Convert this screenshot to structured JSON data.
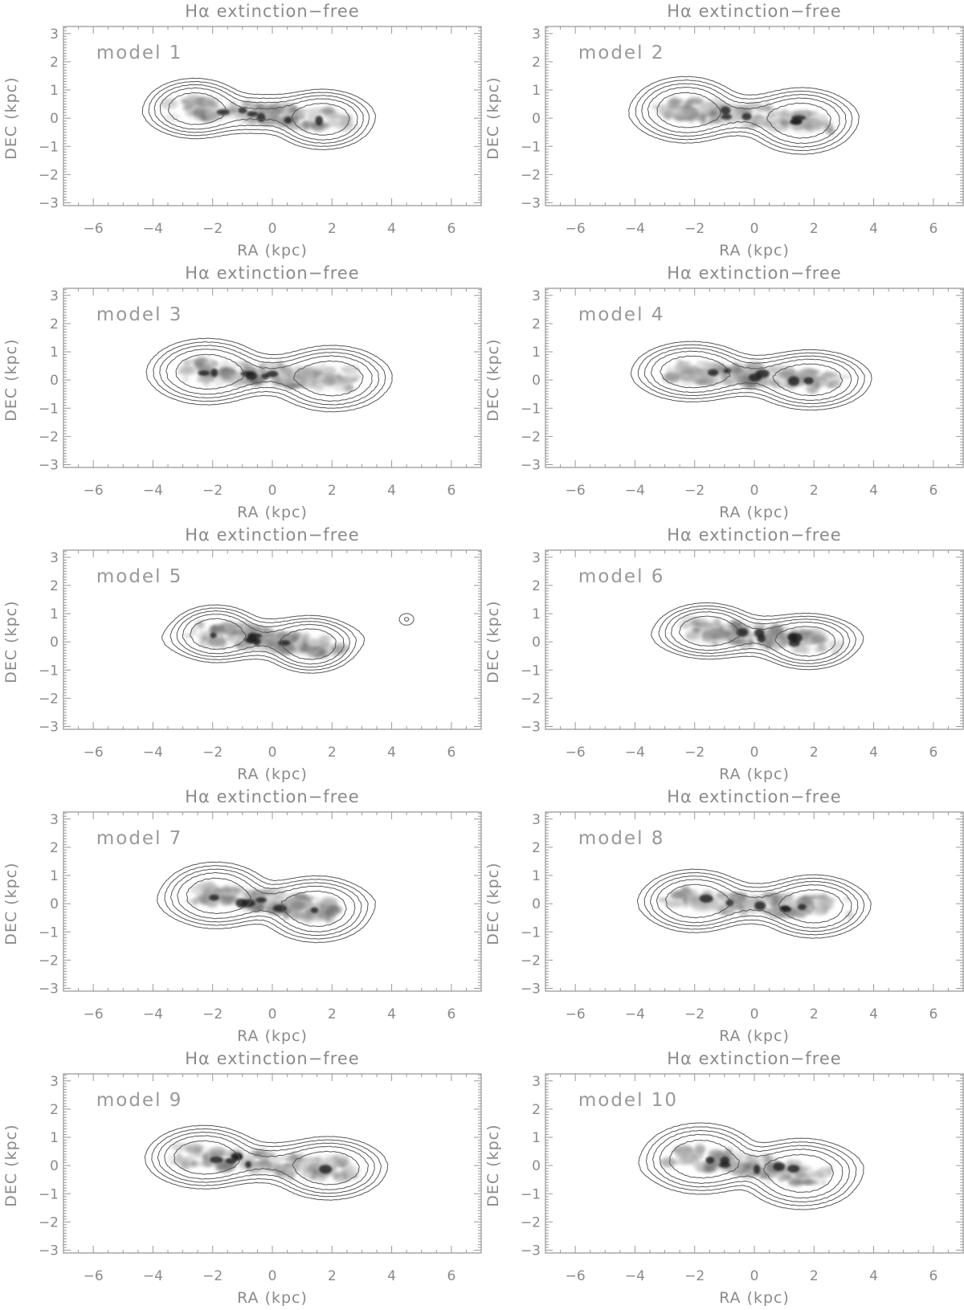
{
  "chart_data": [
    {
      "type": "image",
      "title": "Hα extinction−free",
      "label": "model 1",
      "xlabel": "RA (kpc)",
      "ylabel": "DEC (kpc)",
      "xlim": [
        -7,
        7
      ],
      "ylim": [
        -3.1,
        3.25
      ],
      "xticks": [
        -6,
        -4,
        -2,
        0,
        2,
        4,
        6
      ],
      "yticks": [
        -3,
        -2,
        -1,
        0,
        1,
        2,
        3
      ],
      "colormap": "inverted grayscale",
      "contour_color": "#555555"
    },
    {
      "type": "image",
      "title": "Hα extinction−free",
      "label": "model 2",
      "xlabel": "RA (kpc)",
      "ylabel": "DEC (kpc)",
      "xlim": [
        -7,
        7
      ],
      "ylim": [
        -3.1,
        3.25
      ],
      "xticks": [
        -6,
        -4,
        -2,
        0,
        2,
        4,
        6
      ],
      "yticks": [
        -3,
        -2,
        -1,
        0,
        1,
        2,
        3
      ],
      "colormap": "inverted grayscale",
      "contour_color": "#555555"
    },
    {
      "type": "image",
      "title": "Hα extinction−free",
      "label": "model 3",
      "xlabel": "RA (kpc)",
      "ylabel": "DEC (kpc)",
      "xlim": [
        -7,
        7
      ],
      "ylim": [
        -3.1,
        3.25
      ],
      "xticks": [
        -6,
        -4,
        -2,
        0,
        2,
        4,
        6
      ],
      "yticks": [
        -3,
        -2,
        -1,
        0,
        1,
        2,
        3
      ],
      "colormap": "inverted grayscale",
      "contour_color": "#555555"
    },
    {
      "type": "image",
      "title": "Hα extinction−free",
      "label": "model 4",
      "xlabel": "RA (kpc)",
      "ylabel": "DEC (kpc)",
      "xlim": [
        -7,
        7
      ],
      "ylim": [
        -3.1,
        3.25
      ],
      "xticks": [
        -6,
        -4,
        -2,
        0,
        2,
        4,
        6
      ],
      "yticks": [
        -3,
        -2,
        -1,
        0,
        1,
        2,
        3
      ],
      "colormap": "inverted grayscale",
      "contour_color": "#555555"
    },
    {
      "type": "image",
      "title": "Hα extinction−free",
      "label": "model 5",
      "xlabel": "RA (kpc)",
      "ylabel": "DEC (kpc)",
      "xlim": [
        -7,
        7
      ],
      "ylim": [
        -3.1,
        3.25
      ],
      "xticks": [
        -6,
        -4,
        -2,
        0,
        2,
        4,
        6
      ],
      "yticks": [
        -3,
        -2,
        -1,
        0,
        1,
        2,
        3
      ],
      "colormap": "inverted grayscale",
      "contour_color": "#555555"
    },
    {
      "type": "image",
      "title": "Hα extinction−free",
      "label": "model 6",
      "xlabel": "RA (kpc)",
      "ylabel": "DEC (kpc)",
      "xlim": [
        -7,
        7
      ],
      "ylim": [
        -3.1,
        3.25
      ],
      "xticks": [
        -6,
        -4,
        -2,
        0,
        2,
        4,
        6
      ],
      "yticks": [
        -3,
        -2,
        -1,
        0,
        1,
        2,
        3
      ],
      "colormap": "inverted grayscale",
      "contour_color": "#555555"
    },
    {
      "type": "image",
      "title": "Hα extinction−free",
      "label": "model 7",
      "xlabel": "RA (kpc)",
      "ylabel": "DEC (kpc)",
      "xlim": [
        -7,
        7
      ],
      "ylim": [
        -3.1,
        3.25
      ],
      "xticks": [
        -6,
        -4,
        -2,
        0,
        2,
        4,
        6
      ],
      "yticks": [
        -3,
        -2,
        -1,
        0,
        1,
        2,
        3
      ],
      "colormap": "inverted grayscale",
      "contour_color": "#555555"
    },
    {
      "type": "image",
      "title": "Hα extinction−free",
      "label": "model 8",
      "xlabel": "RA (kpc)",
      "ylabel": "DEC (kpc)",
      "xlim": [
        -7,
        7
      ],
      "ylim": [
        -3.1,
        3.25
      ],
      "xticks": [
        -6,
        -4,
        -2,
        0,
        2,
        4,
        6
      ],
      "yticks": [
        -3,
        -2,
        -1,
        0,
        1,
        2,
        3
      ],
      "colormap": "inverted grayscale",
      "contour_color": "#555555"
    },
    {
      "type": "image",
      "title": "Hα extinction−free",
      "label": "model 9",
      "xlabel": "RA (kpc)",
      "ylabel": "DEC (kpc)",
      "xlim": [
        -7,
        7
      ],
      "ylim": [
        -3.1,
        3.25
      ],
      "xticks": [
        -6,
        -4,
        -2,
        0,
        2,
        4,
        6
      ],
      "yticks": [
        -3,
        -2,
        -1,
        0,
        1,
        2,
        3
      ],
      "colormap": "inverted grayscale",
      "contour_color": "#555555"
    },
    {
      "type": "image",
      "title": "Hα extinction−free",
      "label": "model 10",
      "xlabel": "RA (kpc)",
      "ylabel": "DEC (kpc)",
      "xlim": [
        -7,
        7
      ],
      "ylim": [
        -3.1,
        3.25
      ],
      "xticks": [
        -6,
        -4,
        -2,
        0,
        2,
        4,
        6
      ],
      "yticks": [
        -3,
        -2,
        -1,
        0,
        1,
        2,
        3
      ],
      "colormap": "inverted grayscale",
      "contour_color": "#555555"
    }
  ]
}
